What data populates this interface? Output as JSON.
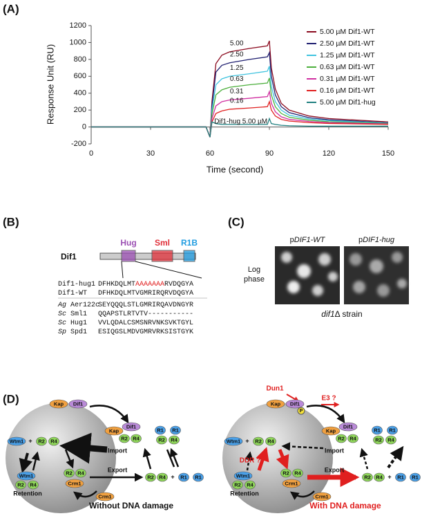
{
  "panel_labels": [
    "(A)",
    "(B)",
    "(C)",
    "(D)"
  ],
  "chart_data": {
    "type": "line",
    "xlabel": "Time (second)",
    "ylabel": "Response Unit (RU)",
    "x": [
      0,
      58,
      60,
      61,
      63,
      66,
      70,
      80,
      89,
      90,
      91,
      93,
      96,
      100,
      110,
      120,
      150
    ],
    "xlim": [
      0,
      150
    ],
    "xticks": [
      0,
      30,
      60,
      90,
      120,
      150
    ],
    "ylim": [
      -200,
      1200
    ],
    "yticks": [
      -200,
      0,
      200,
      400,
      600,
      800,
      1000,
      1200
    ],
    "legend": "top-right",
    "series": [
      {
        "name": "5.00 µM Dif1-WT",
        "color": "#8b0a1e",
        "values": [
          0,
          0,
          -120,
          300,
          750,
          850,
          890,
          930,
          960,
          1020,
          700,
          450,
          280,
          200,
          130,
          100,
          60
        ]
      },
      {
        "name": "2.50 µM Dif1-WT",
        "color": "#1f1f70",
        "values": [
          0,
          0,
          -120,
          250,
          650,
          730,
          760,
          800,
          830,
          880,
          600,
          380,
          240,
          170,
          110,
          85,
          50
        ]
      },
      {
        "name": "1.25 µM Dif1-WT",
        "color": "#3ec3df",
        "values": [
          0,
          0,
          -120,
          200,
          500,
          570,
          600,
          630,
          660,
          720,
          480,
          300,
          200,
          140,
          95,
          75,
          45
        ]
      },
      {
        "name": "0.63 µM Dif1-WT",
        "color": "#4caf3c",
        "values": [
          0,
          0,
          -120,
          150,
          380,
          440,
          470,
          500,
          520,
          580,
          380,
          240,
          160,
          115,
          80,
          62,
          40
        ]
      },
      {
        "name": "0.31 µM Dif1-WT",
        "color": "#d02fa0",
        "values": [
          0,
          0,
          -120,
          100,
          250,
          300,
          320,
          340,
          360,
          420,
          280,
          180,
          120,
          90,
          65,
          52,
          35
        ]
      },
      {
        "name": "0.16 µM Dif1-WT",
        "color": "#e01f1f",
        "values": [
          0,
          0,
          -120,
          60,
          160,
          190,
          210,
          225,
          240,
          300,
          200,
          130,
          90,
          70,
          52,
          42,
          30
        ]
      },
      {
        "name": "5.00 µM Dif1-hug",
        "color": "#1f8080",
        "values": [
          0,
          0,
          -120,
          60,
          40,
          30,
          30,
          30,
          30,
          100,
          40,
          30,
          20,
          15,
          10,
          10,
          10
        ]
      }
    ],
    "annotations": [
      "5.00",
      "2.50",
      "1.25",
      "0.63",
      "0.31",
      "0.16",
      "Dif1-hug 5.00 µM"
    ]
  },
  "panel_b": {
    "protein": "Dif1",
    "domains": [
      {
        "label": "Hug",
        "color": "#9b4fb3"
      },
      {
        "label": "Sml",
        "color": "#e0303a"
      },
      {
        "label": "R1B",
        "color": "#1e9be0"
      }
    ],
    "alignment": [
      {
        "name": "Dif1-hug1",
        "seq": [
          "DFHKDQLMT",
          "AAAAAAA",
          "RVDQGYA"
        ]
      },
      {
        "name": "Dif1-WT",
        "seq": [
          "DFHKDQLMTVGMRIRQRVDQGYA"
        ]
      },
      {
        "species": "Ag",
        "name": "Aer122c",
        "seq": [
          "SEYQQQLSTLGMRIRQAVDNGYR"
        ]
      },
      {
        "species": "Sc",
        "name": "Sml1",
        "seq": [
          "QQAPSTLRTVTV-----------"
        ]
      },
      {
        "species": "Sc",
        "name": "Hug1",
        "seq": [
          "VVLQDALCSMSNRVNKSVKTGYL"
        ]
      },
      {
        "species": "Sp",
        "name": "Spd1",
        "seq": [
          "ESIQGSLMDVGMRVRKSISTGYK"
        ]
      }
    ]
  },
  "panel_c": {
    "columns": [
      {
        "prefix": "p",
        "gene": "DIF1-WT"
      },
      {
        "prefix": "p",
        "gene": "DIF1-hug"
      }
    ],
    "row_label": [
      "Log",
      "phase"
    ],
    "strain": {
      "gene": "dif1",
      "rest": "Δ strain"
    }
  },
  "panel_d": {
    "left": {
      "caption": "Without DNA damage",
      "nodes": [
        {
          "label": "Kap",
          "color": "#f0a040"
        },
        {
          "label": "Dif1",
          "color": "#b98ad8"
        },
        {
          "label": "Wtm1",
          "color": "#4aa0e8"
        },
        {
          "label": "+"
        },
        {
          "label": "R2",
          "color": "#8fd65a"
        },
        {
          "label": "R4",
          "color": "#8fd65a"
        },
        {
          "label": "Kap",
          "color": "#f0a040"
        },
        {
          "label": "Dif1",
          "color": "#b98ad8"
        },
        {
          "label": "R2",
          "color": "#8fd65a"
        },
        {
          "label": "R4",
          "color": "#8fd65a"
        },
        {
          "label": "R1",
          "color": "#4aa0e8"
        },
        {
          "label": "R1",
          "color": "#4aa0e8"
        },
        {
          "label": "R2",
          "color": "#8fd65a"
        },
        {
          "label": "R4",
          "color": "#8fd65a"
        },
        {
          "label": "Import"
        },
        {
          "label": "Export"
        },
        {
          "label": "R2",
          "color": "#8fd65a"
        },
        {
          "label": "R4",
          "color": "#8fd65a"
        },
        {
          "label": "+"
        },
        {
          "label": "R1",
          "color": "#4aa0e8"
        },
        {
          "label": "R1",
          "color": "#4aa0e8"
        },
        {
          "label": "Wtm1",
          "color": "#4aa0e8"
        },
        {
          "label": "R2",
          "color": "#8fd65a"
        },
        {
          "label": "R4",
          "color": "#8fd65a"
        },
        {
          "label": "Retention"
        },
        {
          "label": "R2",
          "color": "#8fd65a"
        },
        {
          "label": "R4",
          "color": "#8fd65a"
        },
        {
          "label": "Crm1",
          "color": "#f0a040"
        },
        {
          "label": "Crm1",
          "color": "#f0a040"
        }
      ]
    },
    "right": {
      "caption": "With DNA damage",
      "nodes": [
        {
          "label": "Kap",
          "color": "#f0a040"
        },
        {
          "label": "Dif1",
          "color": "#b98ad8"
        },
        {
          "label": "Wtm1",
          "color": "#4aa0e8"
        },
        {
          "label": "+"
        },
        {
          "label": "R2",
          "color": "#8fd65a"
        },
        {
          "label": "R4",
          "color": "#8fd65a"
        },
        {
          "label": "Kap",
          "color": "#f0a040"
        },
        {
          "label": "Dif1",
          "color": "#b98ad8"
        },
        {
          "label": "R2",
          "color": "#8fd65a"
        },
        {
          "label": "R4",
          "color": "#8fd65a"
        },
        {
          "label": "R1",
          "color": "#4aa0e8"
        },
        {
          "label": "R1",
          "color": "#4aa0e8"
        },
        {
          "label": "R2",
          "color": "#8fd65a"
        },
        {
          "label": "R4",
          "color": "#8fd65a"
        },
        {
          "label": "Import"
        },
        {
          "label": "Export"
        },
        {
          "label": "R2",
          "color": "#8fd65a"
        },
        {
          "label": "R4",
          "color": "#8fd65a"
        },
        {
          "label": "+"
        },
        {
          "label": "R1",
          "color": "#4aa0e8"
        },
        {
          "label": "R1",
          "color": "#4aa0e8"
        },
        {
          "label": "Wtm1",
          "color": "#4aa0e8"
        },
        {
          "label": "R2",
          "color": "#8fd65a"
        },
        {
          "label": "R4",
          "color": "#8fd65a"
        },
        {
          "label": "Retention"
        },
        {
          "label": "R2",
          "color": "#8fd65a"
        },
        {
          "label": "R4",
          "color": "#8fd65a"
        },
        {
          "label": "Crm1",
          "color": "#f0a040"
        },
        {
          "label": "Crm1",
          "color": "#f0a040"
        }
      ],
      "extra": [
        "Dun1",
        "E3 ?",
        "DDR ?",
        "P"
      ]
    }
  }
}
